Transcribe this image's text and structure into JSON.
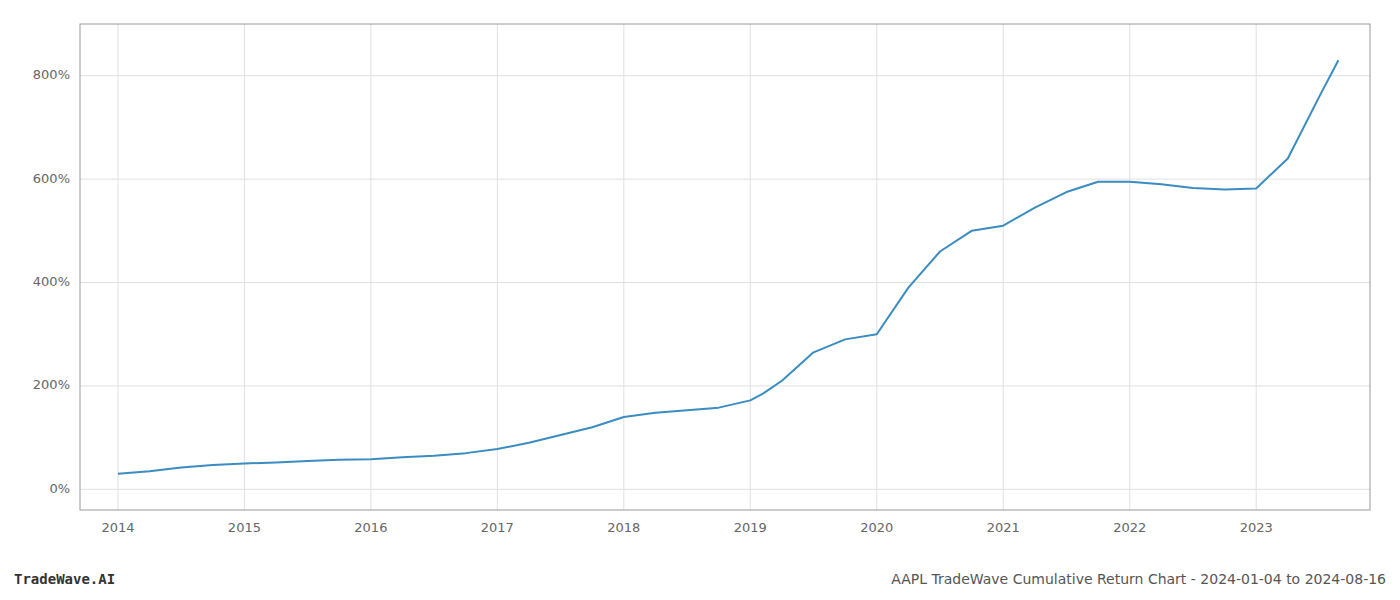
{
  "chart_data": {
    "type": "line",
    "title": "AAPL TradeWave Cumulative Return Chart - 2024-01-04 to 2024-08-16",
    "annotations": [
      "TradeWave.AI"
    ],
    "x": [
      2014.0,
      2014.25,
      2014.5,
      2014.75,
      2015.0,
      2015.25,
      2015.5,
      2015.75,
      2016.0,
      2016.25,
      2016.5,
      2016.75,
      2017.0,
      2017.25,
      2017.5,
      2017.75,
      2018.0,
      2018.25,
      2018.5,
      2018.75,
      2019.0,
      2019.1,
      2019.25,
      2019.5,
      2019.75,
      2020.0,
      2020.25,
      2020.5,
      2020.75,
      2021.0,
      2021.25,
      2021.5,
      2021.75,
      2022.0,
      2022.25,
      2022.5,
      2022.75,
      2023.0,
      2023.25,
      2023.5,
      2023.65
    ],
    "values": [
      30,
      35,
      42,
      47,
      50,
      52,
      55,
      57,
      58,
      62,
      65,
      70,
      78,
      90,
      105,
      120,
      140,
      148,
      153,
      158,
      172,
      185,
      210,
      265,
      290,
      300,
      390,
      460,
      500,
      510,
      545,
      575,
      595,
      595,
      590,
      583,
      580,
      582,
      640,
      760,
      830
    ],
    "color": "#3a8cc1",
    "xlim": [
      2013.7,
      2023.9
    ],
    "ylim": [
      -40,
      900
    ],
    "xticks": [
      2014,
      2015,
      2016,
      2017,
      2018,
      2019,
      2020,
      2021,
      2022,
      2023
    ],
    "yticks": [
      {
        "value": 0,
        "label": "0%"
      },
      {
        "value": 200,
        "label": "200%"
      },
      {
        "value": 400,
        "label": "400%"
      },
      {
        "value": 600,
        "label": "600%"
      },
      {
        "value": 800,
        "label": "800%"
      }
    ],
    "grid": true
  }
}
